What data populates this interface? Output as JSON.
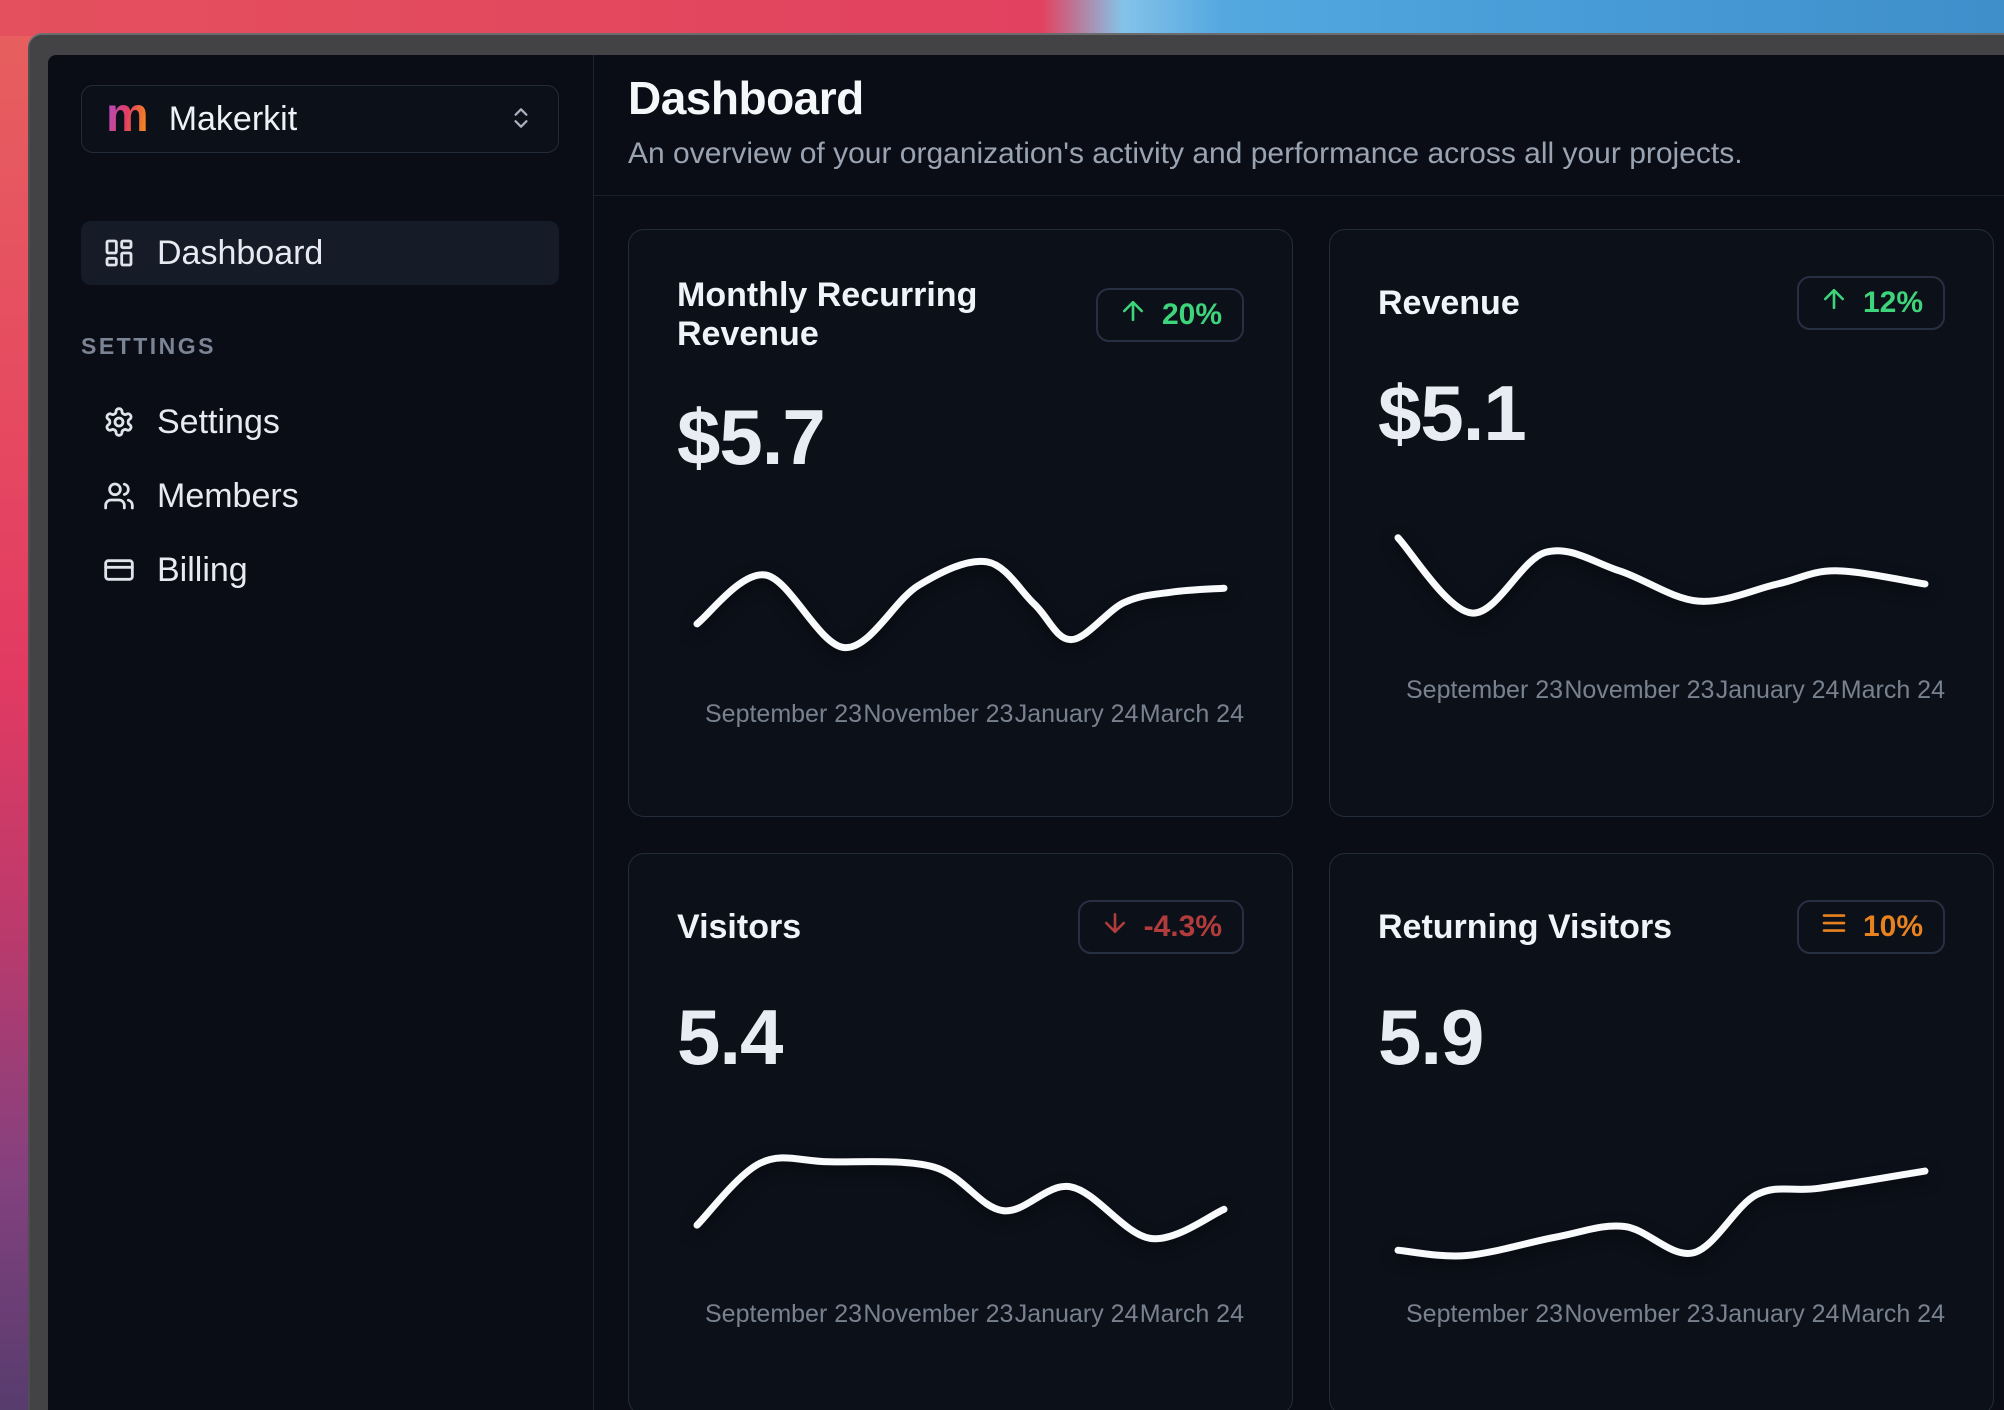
{
  "sidebar": {
    "workspace": {
      "logo_letter": "m",
      "name": "Makerkit",
      "caret_icon": "chevrons-up-down-icon"
    },
    "nav": [
      {
        "label": "Dashboard",
        "icon": "layout-dashboard-icon",
        "active": true
      }
    ],
    "section_label": "SETTINGS",
    "settings_nav": [
      {
        "label": "Settings",
        "icon": "gear-icon"
      },
      {
        "label": "Members",
        "icon": "users-icon"
      },
      {
        "label": "Billing",
        "icon": "credit-card-icon"
      }
    ]
  },
  "header": {
    "title": "Dashboard",
    "subtitle": "An overview of your organization's activity and performance across all your projects."
  },
  "colors": {
    "positive": "#3ed47c",
    "negative": "#b23c3c",
    "neutral": "#e8821e",
    "line": "#f8fafc",
    "card_bg": "#0c1019",
    "page_bg": "#0a0d15"
  },
  "chart_data": [
    {
      "type": "line",
      "title": "Monthly Recurring Revenue",
      "value": "$5.7",
      "trend": {
        "direction": "up",
        "label": "20%",
        "icon": "arrow-up-icon",
        "color": "#3ed47c"
      },
      "x_ticks": [
        "September 23",
        "November 23",
        "January 24",
        "March 24"
      ],
      "points": [
        [
          0,
          38
        ],
        [
          13,
          75
        ],
        [
          28,
          20
        ],
        [
          42,
          67
        ],
        [
          55,
          85
        ],
        [
          64,
          53
        ],
        [
          71,
          26
        ],
        [
          81,
          54
        ],
        [
          90,
          62
        ],
        [
          100,
          65
        ]
      ],
      "ylim": [
        0,
        100
      ],
      "grid": false,
      "y_axis_visible": false,
      "line_color": "#f8fafc"
    },
    {
      "type": "line",
      "title": "Revenue",
      "value": "$5.1",
      "trend": {
        "direction": "up",
        "label": "12%",
        "icon": "arrow-up-icon",
        "color": "#3ed47c"
      },
      "x_ticks": [
        "September 23",
        "November 23",
        "January 24",
        "March 24"
      ],
      "points": [
        [
          0,
          85
        ],
        [
          14,
          28
        ],
        [
          28,
          74
        ],
        [
          42,
          60
        ],
        [
          57,
          37
        ],
        [
          72,
          50
        ],
        [
          83,
          60
        ],
        [
          100,
          50
        ]
      ],
      "ylim": [
        0,
        100
      ],
      "grid": false,
      "y_axis_visible": false,
      "line_color": "#f8fafc"
    },
    {
      "type": "line",
      "title": "Visitors",
      "value": "5.4",
      "trend": {
        "direction": "down",
        "label": "-4.3%",
        "icon": "arrow-down-icon",
        "color": "#b23c3c"
      },
      "x_ticks": [
        "September 23",
        "November 23",
        "January 24",
        "March 24"
      ],
      "points": [
        [
          0,
          37
        ],
        [
          12,
          84
        ],
        [
          25,
          85
        ],
        [
          45,
          81
        ],
        [
          58,
          48
        ],
        [
          71,
          66
        ],
        [
          86,
          27
        ],
        [
          100,
          49
        ]
      ],
      "ylim": [
        0,
        100
      ],
      "grid": false,
      "y_axis_visible": false,
      "line_color": "#f8fafc"
    },
    {
      "type": "line",
      "title": "Returning Visitors",
      "value": "5.9",
      "trend": {
        "direction": "flat",
        "label": "10%",
        "icon": "menu-icon",
        "color": "#e8821e"
      },
      "x_ticks": [
        "September 23",
        "November 23",
        "January 24",
        "March 24"
      ],
      "points": [
        [
          0,
          18
        ],
        [
          13,
          14
        ],
        [
          30,
          28
        ],
        [
          43,
          36
        ],
        [
          56,
          16
        ],
        [
          68,
          60
        ],
        [
          80,
          65
        ],
        [
          100,
          78
        ]
      ],
      "ylim": [
        0,
        100
      ],
      "grid": false,
      "y_axis_visible": false,
      "line_color": "#f8fafc"
    }
  ]
}
